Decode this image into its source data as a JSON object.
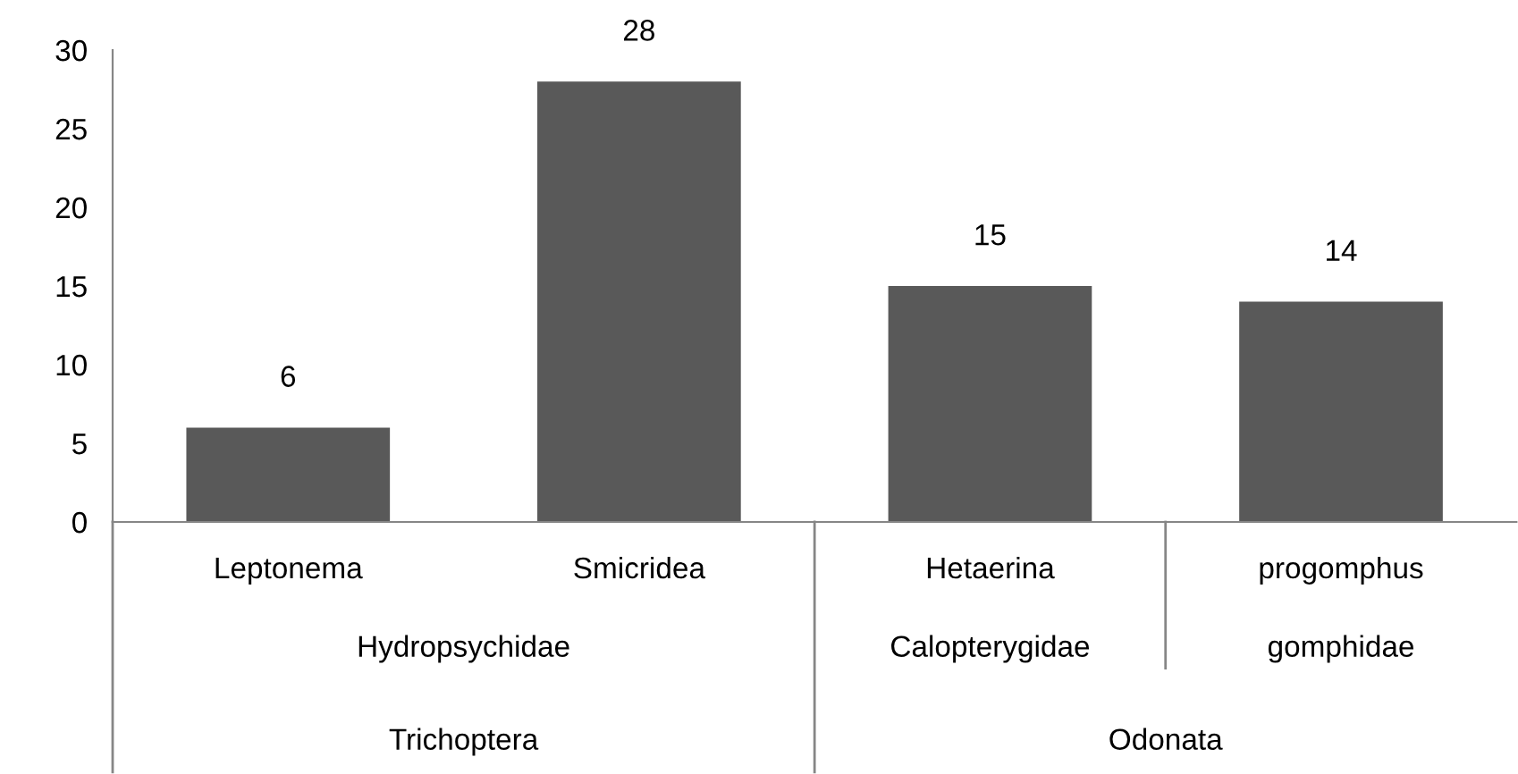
{
  "chart_data": {
    "type": "bar",
    "categories": [
      "Leptonema",
      "Smicridea",
      "Hetaerina",
      "progomphus"
    ],
    "values": [
      6,
      28,
      15,
      14
    ],
    "color": "#595959",
    "ylim": [
      0,
      30
    ],
    "yticks": [
      0,
      5,
      10,
      15,
      20,
      25,
      30
    ],
    "grid": false,
    "data_labels": true,
    "annotations": [
      "Hydropsychidae",
      "Calopterygidae",
      "gomphidae",
      "Trichoptera",
      "Odonata"
    ]
  }
}
